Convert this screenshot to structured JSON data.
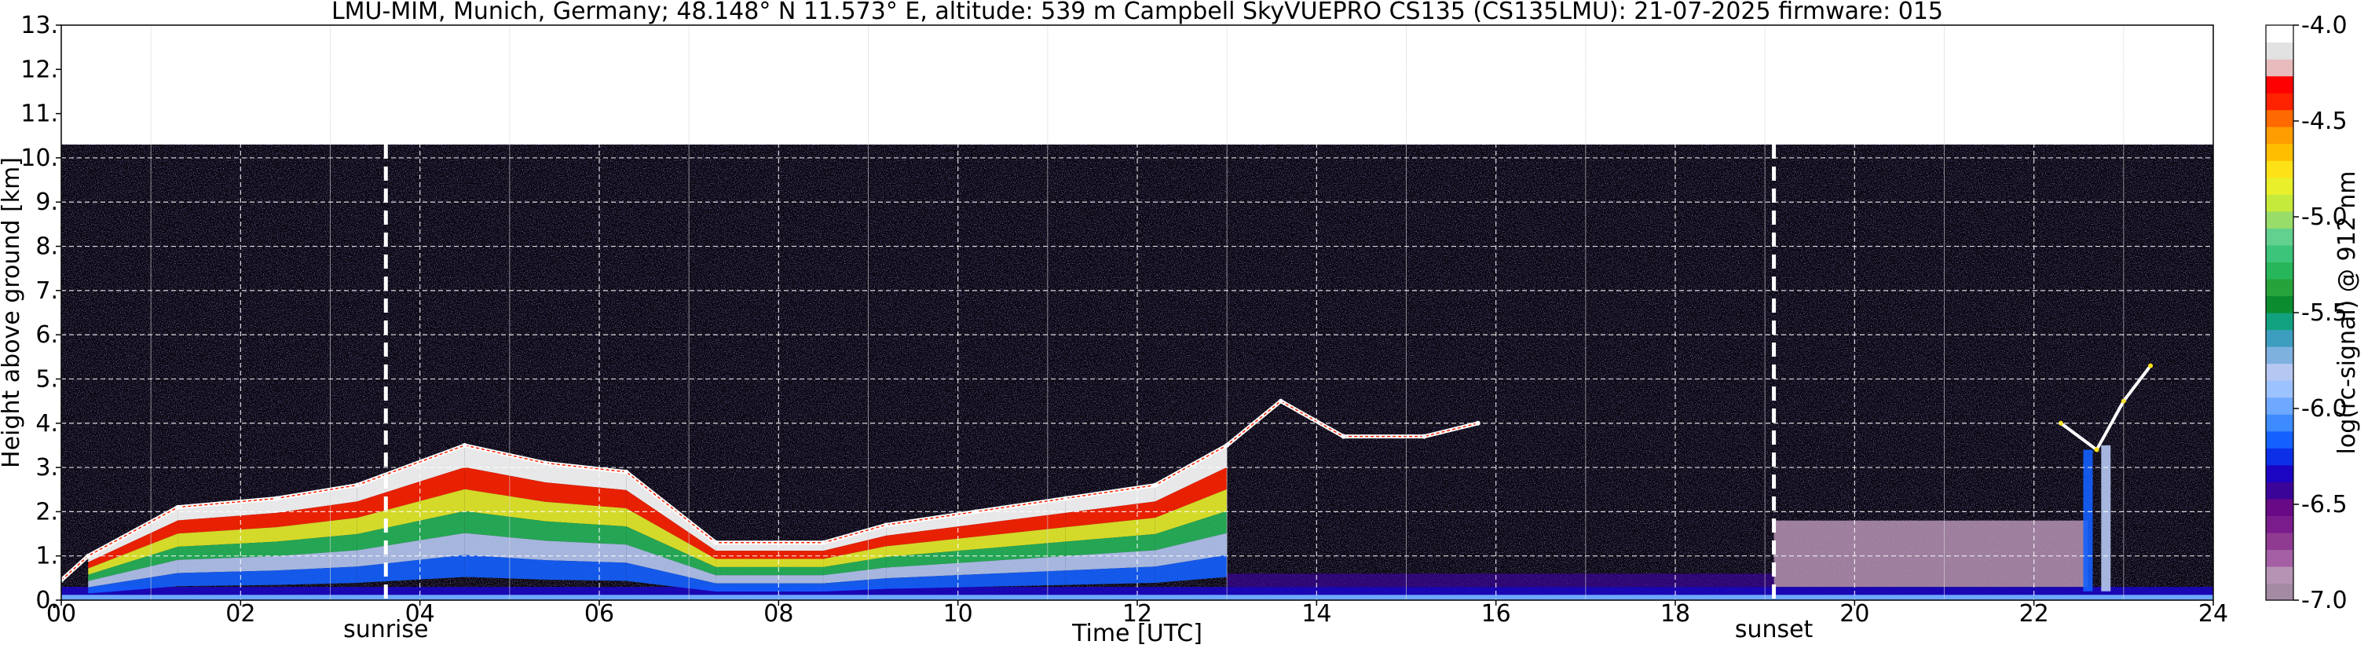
{
  "chart_data": {
    "type": "heatmap",
    "title": "LMU-MIM, Munich, Germany; 48.148° N 11.573° E, altitude: 539 m    Campbell SkyVUEPRO CS135 (CS135LMU): 21-07-2025    firmware: 015",
    "xlabel": "Time [UTC]",
    "ylabel": "Height above ground [km]",
    "xlim": [
      0,
      24
    ],
    "ylim": [
      0,
      13
    ],
    "x_ticks": [
      "00",
      "02",
      "04",
      "06",
      "08",
      "10",
      "12",
      "14",
      "16",
      "18",
      "20",
      "22",
      "24"
    ],
    "y_ticks": [
      "0.",
      "1.",
      "2.",
      "3.",
      "4.",
      "5.",
      "6.",
      "7.",
      "8.",
      "9.",
      "10.",
      "11.",
      "12.",
      "13."
    ],
    "grid": true,
    "data_top_km": 10.3,
    "annotations": [
      {
        "label": "sunrise",
        "x": 3.62
      },
      {
        "label": "sunset",
        "x": 19.1
      }
    ],
    "colorbar": {
      "label": "log(rc-signal) @ 912 nm",
      "range": [
        -7.0,
        -4.0
      ],
      "ticks": [
        "-4.0",
        "-4.5",
        "-5.0",
        "-5.5",
        "-6.0",
        "-6.5",
        "-7.0"
      ],
      "colors": [
        "#a48aa3",
        "#b693b5",
        "#a35ea4",
        "#8f3b92",
        "#7a1c8b",
        "#680a85",
        "#3b0499",
        "#1b05c2",
        "#0b30e8",
        "#1461ff",
        "#3e8bff",
        "#6ea8ff",
        "#9cc2ff",
        "#b6c8f2",
        "#7fb1df",
        "#3d9dbf",
        "#12a17f",
        "#0b8c2e",
        "#26a33a",
        "#27b65a",
        "#3cc47a",
        "#62d08f",
        "#98dc6a",
        "#c6ea3c",
        "#e9f02a",
        "#ffe118",
        "#ffbf00",
        "#ff9d00",
        "#ff6a00",
        "#ff2200",
        "#ff0000",
        "#e8bcbc",
        "#e2e2e2",
        "#ffffff"
      ]
    },
    "features": {
      "cloud_base_km": [
        {
          "t": 0.0,
          "h": 0.45
        },
        {
          "t": 0.3,
          "h": 1.0
        },
        {
          "t": 1.3,
          "h": 2.1
        },
        {
          "t": 2.4,
          "h": 2.3
        },
        {
          "t": 3.3,
          "h": 2.6
        },
        {
          "t": 4.5,
          "h": 3.5
        },
        {
          "t": 5.4,
          "h": 3.1
        },
        {
          "t": 6.3,
          "h": 2.9
        },
        {
          "t": 7.3,
          "h": 1.3
        },
        {
          "t": 8.5,
          "h": 1.3
        },
        {
          "t": 9.2,
          "h": 1.7
        },
        {
          "t": 10.2,
          "h": 2.0
        },
        {
          "t": 11.2,
          "h": 2.3
        },
        {
          "t": 12.2,
          "h": 2.6
        },
        {
          "t": 13.0,
          "h": 3.5
        },
        {
          "t": 13.6,
          "h": 4.5
        },
        {
          "t": 14.3,
          "h": 3.7
        },
        {
          "t": 15.2,
          "h": 3.7
        },
        {
          "t": 15.8,
          "h": 4.0
        }
      ],
      "late_cloud_km": [
        {
          "t": 22.3,
          "h": 4.0
        },
        {
          "t": 22.7,
          "h": 3.4
        },
        {
          "t": 23.0,
          "h": 4.5
        },
        {
          "t": 23.3,
          "h": 5.3
        }
      ]
    }
  }
}
